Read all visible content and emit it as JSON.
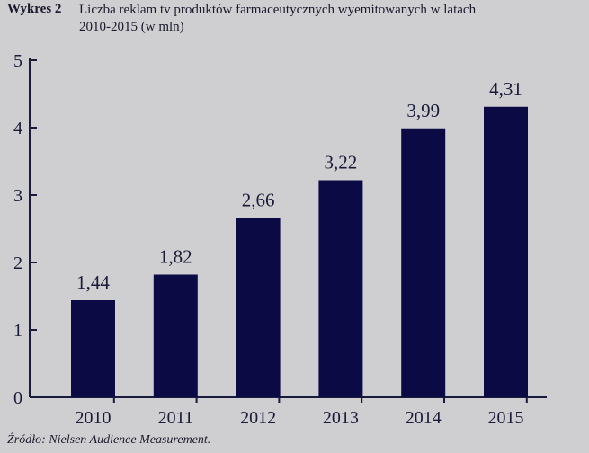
{
  "header": {
    "label": "Wykres 2",
    "title_line1": "Liczba reklam tv produktów farmaceutycznych wyemitowanych w latach",
    "title_line2": "2010-2015 (w mln)"
  },
  "chart_data": {
    "type": "bar",
    "categories": [
      "2010",
      "2011",
      "2012",
      "2013",
      "2014",
      "2015"
    ],
    "values": [
      1.44,
      1.82,
      2.66,
      3.22,
      3.99,
      4.31
    ],
    "data_labels": [
      "1,44",
      "1,82",
      "2,66",
      "3,22",
      "3,99",
      "4,31"
    ],
    "yticks": [
      "0",
      "1",
      "2",
      "3",
      "4",
      "5"
    ],
    "ylim": [
      0,
      5
    ],
    "grid": false,
    "bar_color": "#0c0a45"
  },
  "footer": {
    "source": "Źródło: Nielsen Audience Measurement."
  }
}
